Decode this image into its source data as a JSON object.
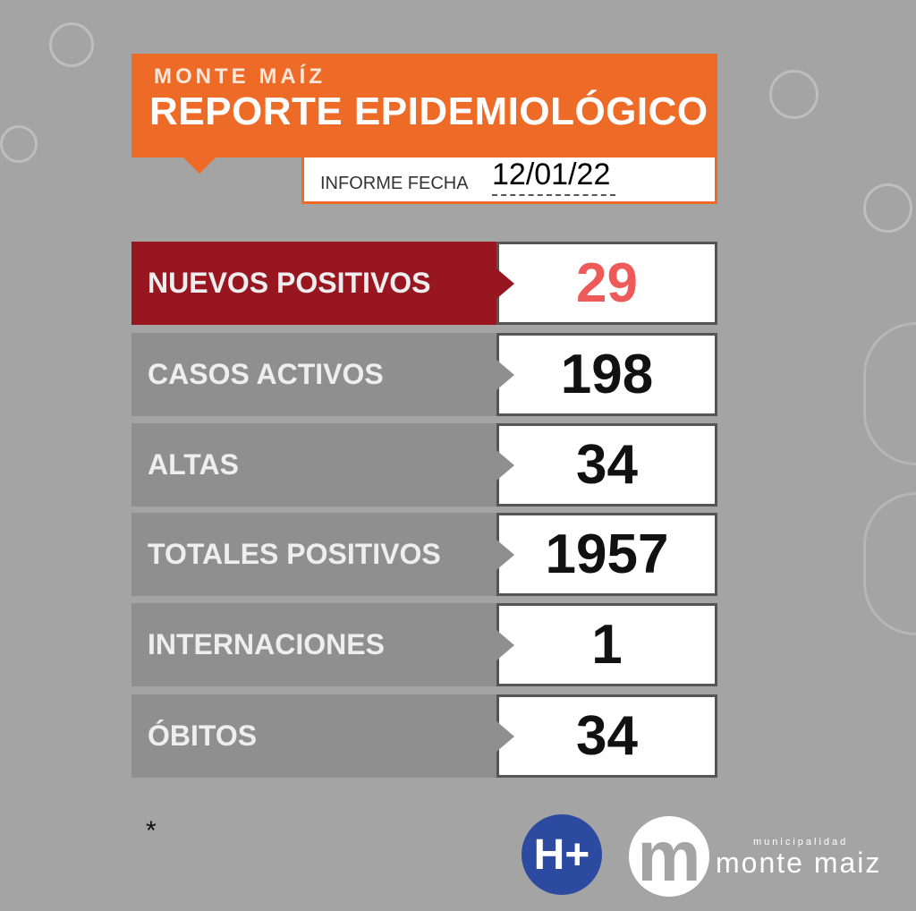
{
  "header": {
    "subtitle": "MONTE MAÍZ",
    "title": "REPORTE EPIDEMIOLÓGICO",
    "date_label": "INFORME FECHA",
    "date": "12/01/22"
  },
  "rows": [
    {
      "label": "NUEVOS POSITIVOS",
      "value": "29"
    },
    {
      "label": "CASOS ACTIVOS",
      "value": "198"
    },
    {
      "label": "ALTAS",
      "value": "34"
    },
    {
      "label": "TOTALES POSITIVOS",
      "value": "1957"
    },
    {
      "label": "INTERNACIONES",
      "value": "1"
    },
    {
      "label": "ÓBITOS",
      "value": "34"
    }
  ],
  "footnote": "*",
  "logos": {
    "health": "H+",
    "municipality_mark": "m",
    "municipality_small": "municipalidad",
    "municipality_name": "monte maiz"
  },
  "colors": {
    "orange": "#ee6a27",
    "red": "#981620",
    "gray": "#a4a4a4",
    "highlight_value": "#ee5a5a"
  }
}
